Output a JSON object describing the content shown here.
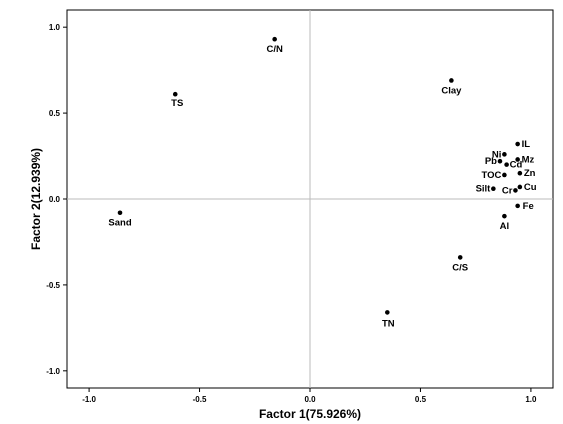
{
  "chart_data": {
    "type": "scatter",
    "xlabel": "Factor 1(75.926%)",
    "ylabel": "Factor 2(12.939%)",
    "xlim": [
      -1.1,
      1.1
    ],
    "ylim": [
      -1.1,
      1.1
    ],
    "xticks": [
      "-1.0",
      "-0.5",
      "0.0",
      "0.5",
      "1.0"
    ],
    "yticks": [
      "1.0",
      "0.5",
      "0.0",
      "-0.5",
      "-1.0"
    ],
    "grid": false,
    "reference_lines": {
      "x": 0,
      "y": 0
    },
    "points": [
      {
        "label": "C/N",
        "x": -0.16,
        "y": 0.93
      },
      {
        "label": "TS",
        "x": -0.61,
        "y": 0.61
      },
      {
        "label": "Sand",
        "x": -0.86,
        "y": -0.08
      },
      {
        "label": "Clay",
        "x": 0.64,
        "y": 0.69
      },
      {
        "label": "IL",
        "x": 0.94,
        "y": 0.32
      },
      {
        "label": "Ni",
        "x": 0.88,
        "y": 0.26
      },
      {
        "label": "Mz",
        "x": 0.94,
        "y": 0.23
      },
      {
        "label": "Pb",
        "x": 0.86,
        "y": 0.22
      },
      {
        "label": "Cd",
        "x": 0.89,
        "y": 0.2
      },
      {
        "label": "TOC",
        "x": 0.88,
        "y": 0.14
      },
      {
        "label": "Zn",
        "x": 0.95,
        "y": 0.15
      },
      {
        "label": "Silt",
        "x": 0.83,
        "y": 0.06
      },
      {
        "label": "Cr",
        "x": 0.93,
        "y": 0.05
      },
      {
        "label": "Cu",
        "x": 0.95,
        "y": 0.07
      },
      {
        "label": "Fe",
        "x": 0.94,
        "y": -0.04
      },
      {
        "label": "Al",
        "x": 0.88,
        "y": -0.1
      },
      {
        "label": "C/S",
        "x": 0.68,
        "y": -0.34
      },
      {
        "label": "TN",
        "x": 0.35,
        "y": -0.66
      }
    ]
  }
}
